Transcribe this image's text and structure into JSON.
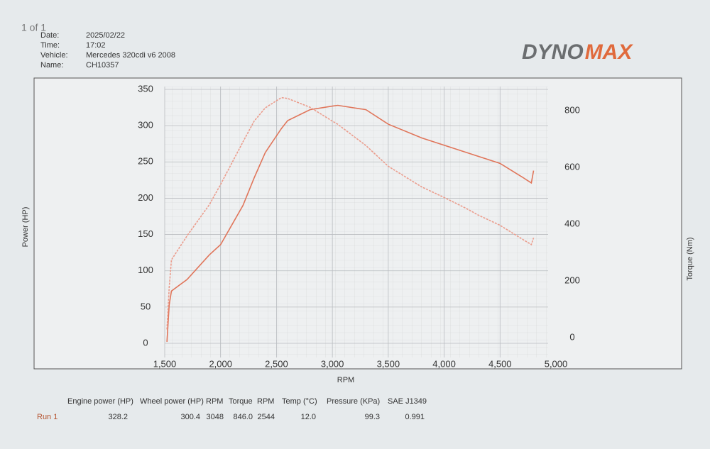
{
  "header": {
    "page": "1 of 1",
    "fields": [
      {
        "label": "Date:",
        "value": "2025/02/22"
      },
      {
        "label": "Time:",
        "value": "17:02"
      },
      {
        "label": "Vehicle:",
        "value": "Mercedes  320cdi v6 2008"
      },
      {
        "label": "Name:",
        "value": "CH10357"
      }
    ],
    "logo": {
      "part1": "DYNO",
      "part2": "MAX"
    }
  },
  "chart_data": {
    "type": "line",
    "x_label": "RPM",
    "y_label": "Power (HP)",
    "y2_label": "Torque (Nm)",
    "x": [
      1520,
      1540,
      1560,
      1700,
      1900,
      2000,
      2200,
      2300,
      2400,
      2544,
      2600,
      2800,
      3000,
      3048,
      3300,
      3500,
      3800,
      4000,
      4200,
      4300,
      4500,
      4700,
      4780,
      4800
    ],
    "series": [
      {
        "name": "Power (HP)",
        "color": "#e0755a",
        "axis": "y",
        "values": [
          2,
          53,
          72,
          88,
          122,
          136,
          190,
          228,
          263,
          296,
          307,
          322,
          327,
          328,
          322,
          302,
          283,
          273,
          263,
          258,
          248,
          229,
          221,
          238
        ]
      },
      {
        "name": "Torque (Nm)",
        "color": "#eb9c8c",
        "axis": "y2",
        "values": [
          29,
          176,
          274,
          359,
          469,
          540,
          690,
          763,
          810,
          846,
          843,
          812,
          763,
          752,
          677,
          604,
          531,
          494,
          455,
          433,
          396,
          347,
          328,
          352
        ]
      }
    ],
    "xlim": [
      1500,
      5000
    ],
    "xticks": [
      {
        "value": 1500,
        "label": "1,500"
      },
      {
        "value": 2000,
        "label": "2,000"
      },
      {
        "value": 2500,
        "label": "2,500"
      },
      {
        "value": 3000,
        "label": "3,000"
      },
      {
        "value": 3500,
        "label": "3,500"
      },
      {
        "value": 4000,
        "label": "4,000"
      },
      {
        "value": 4500,
        "label": "4,500"
      },
      {
        "value": 5000,
        "label": "5,000"
      }
    ],
    "ylim": [
      0,
      350
    ],
    "yticks": [
      0,
      50,
      100,
      150,
      200,
      250,
      300,
      350
    ],
    "y2lim": [
      -20,
      875
    ],
    "y2ticks": [
      0,
      200,
      400,
      600,
      800
    ],
    "grid": true
  },
  "table": {
    "headers": [
      "Engine power (HP)",
      "Wheel power (HP)",
      "RPM",
      "Torque",
      "RPM",
      "Temp (°C)",
      "Pressure (KPa)",
      "SAE J1349"
    ],
    "rows": [
      [
        "Run 1",
        "328.2",
        "300.4",
        "3048",
        "846.0",
        "2544",
        "12.0",
        "99.3",
        "0.991"
      ]
    ]
  }
}
